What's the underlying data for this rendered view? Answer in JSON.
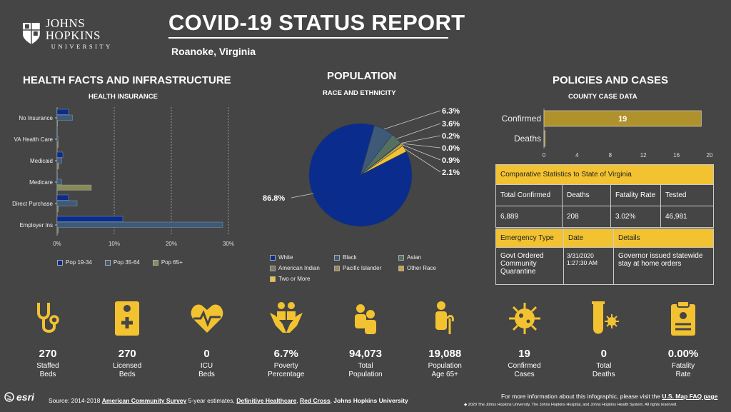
{
  "header": {
    "logo_name": "JOHNS HOPKINS",
    "logo_sub": "UNIVERSITY",
    "title": "COVID-19 STATUS REPORT",
    "location": "Roanoke,  Virginia"
  },
  "health": {
    "section_title": "HEALTH FACTS AND INFRASTRUCTURE",
    "chart_title": "HEALTH INSURANCE",
    "legend": [
      "Pop 19-34",
      "Pop 35-64",
      "Pop 65+"
    ]
  },
  "population": {
    "section_title": "POPULATION",
    "chart_title": "RACE AND ETHNICITY",
    "legend": [
      "White",
      "Black",
      "Asian",
      "American Indian",
      "Pacific Islander",
      "Other Race",
      "Two or More"
    ]
  },
  "policies": {
    "section_title": "POLICIES AND CASES",
    "chart_title": "COUNTY CASE DATA",
    "comp_title": "Comparative Statistics to State of Virginia",
    "comp_headers": [
      "Total Confirmed",
      "Deaths",
      "Fatality Rate",
      "Tested"
    ],
    "comp_values": [
      "6,889",
      "208",
      "3.02%",
      "46,981"
    ],
    "emerg_headers": [
      "Emergency Type",
      "Date",
      "Details"
    ],
    "emerg_type": "Govt Ordered Community Quarantine",
    "emerg_date": "3/31/2020 1:27:30 AM",
    "emerg_details": "Governor issued statewide stay at home orders"
  },
  "stats": [
    {
      "value": "270",
      "label": "Staffed Beds",
      "icon": "stethoscope-icon"
    },
    {
      "value": "270",
      "label": "Licensed Beds",
      "icon": "hospital-bed-icon"
    },
    {
      "value": "0",
      "label": "ICU Beds",
      "icon": "heartbeat-icon"
    },
    {
      "value": "6.7%",
      "label": "Poverty Percentage",
      "icon": "hands-people-icon"
    },
    {
      "value": "94,073",
      "label": "Total Population",
      "icon": "people-icon"
    },
    {
      "value": "19,088",
      "label": "Population Age 65+",
      "icon": "elderly-icon"
    },
    {
      "value": "19",
      "label": "Confirmed Cases",
      "icon": "virus-icon"
    },
    {
      "value": "0",
      "label": "Total Deaths",
      "icon": "test-tube-icon"
    },
    {
      "value": "0.00%",
      "label": "Fatality Rate",
      "icon": "clipboard-icon"
    }
  ],
  "footer": {
    "esri": "esri",
    "source_prefix": "Source: 2014-2018",
    "source_acs": "American Community Survey",
    "source_mid": "5-year estimates,",
    "source_dh": "Definitive Healthcare",
    "source_rc": "Red Cross",
    "source_jhu": "Johns Hopkins University",
    "more_info": "For more information about this infographic, please visit the",
    "faq_link": "U.S. Map FAQ page",
    "copyright": "◆ 2020 The Johns Hopkins University, The Johns Hopkins Hospital, and Johns Hopkins Health System. All rights reserved."
  },
  "colors": {
    "bg": "#454545",
    "accent": "#f2c231",
    "navy": "#0a2c8c",
    "slate": "#3e5a78",
    "olive": "#8a8a58"
  },
  "chart_data": [
    {
      "type": "bar",
      "orientation": "horizontal",
      "title": "HEALTH INSURANCE",
      "categories": [
        "No Insurance",
        "VA Health Care",
        "Medicaid",
        "Medicare",
        "Direct Purchase",
        "Employer Ins"
      ],
      "series": [
        {
          "name": "Pop 19-34",
          "color": "#0a2c8c",
          "values": [
            2,
            0,
            1,
            0,
            2,
            11.5
          ]
        },
        {
          "name": "Pop 35-64",
          "color": "#3e5a78",
          "values": [
            2.7,
            0.2,
            0.8,
            0.8,
            3.5,
            29
          ]
        },
        {
          "name": "Pop 65+",
          "color": "#8a8a58",
          "values": [
            0,
            0.2,
            0.3,
            6,
            0.2,
            0.2
          ]
        }
      ],
      "xlim": [
        0,
        30
      ],
      "xticks": [
        "0%",
        "10%",
        "20%",
        "30%"
      ]
    },
    {
      "type": "pie",
      "title": "RACE AND ETHNICITY",
      "labels": [
        "White",
        "Black",
        "Asian",
        "American Indian",
        "Pacific Islander",
        "Other Race",
        "Two or More"
      ],
      "values": [
        86.8,
        6.3,
        3.6,
        0.2,
        0.0,
        0.9,
        2.1
      ],
      "value_labels": [
        "86.8%",
        "6.3%",
        "3.6%",
        "0.2%",
        "0.0%",
        "0.9%",
        "2.1%"
      ],
      "colors": [
        "#0a2c8c",
        "#3e5a78",
        "#55705f",
        "#7a7a66",
        "#9a8a55",
        "#c9a640",
        "#f2c231"
      ]
    },
    {
      "type": "bar",
      "orientation": "horizontal",
      "title": "COUNTY CASE DATA",
      "categories": [
        "Confirmed",
        "Deaths"
      ],
      "values": [
        19,
        0
      ],
      "value_labels": [
        "19",
        ""
      ],
      "xlim": [
        0,
        20
      ],
      "xticks": [
        "0",
        "4",
        "8",
        "12",
        "16",
        "20"
      ]
    }
  ]
}
